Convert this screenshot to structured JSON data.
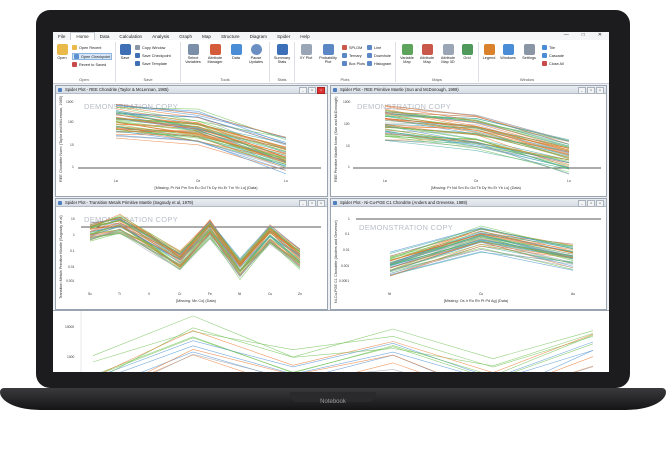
{
  "device": {
    "label": "Notebook"
  },
  "menubar": {
    "tabs": [
      "File",
      "Home",
      "Data",
      "Calculation",
      "Analysis",
      "Graph",
      "Map",
      "Structure",
      "Diagram",
      "Spider",
      "Help"
    ],
    "active": "Home"
  },
  "ribbon": {
    "open": {
      "label": "Open",
      "recent": "Open Recent",
      "checkpoint": "Open Checkpoint",
      "revert": "Revert to Saved",
      "group": "Open"
    },
    "save": {
      "label": "Save",
      "copy_window": "Copy Window",
      "save_checkpoint": "Save Checkpoint",
      "save_template": "Save Template",
      "group": "Save"
    },
    "tools": {
      "select": "Select Variables",
      "attribute": "Attribute Manager",
      "data": "Data",
      "pause": "Pause Updates",
      "group": "Tools"
    },
    "stats": {
      "summary": "Summary Stats",
      "group": "Stats"
    },
    "plots": {
      "xy": "XY Plot",
      "probability": "Probability Plot",
      "splom": "SPLOM",
      "ternary": "Ternary",
      "boxplots": "Box Plots",
      "line": "Line",
      "downhole": "Downhole",
      "histogram": "Histogram",
      "group": "Plots"
    },
    "maps": {
      "variable": "Variable Map",
      "attribute": "Attribute Map",
      "attribute3d": "Attribute Map 3D",
      "grid": "Grid",
      "group": "Maps"
    },
    "window": {
      "legend": "Legend",
      "windows": "Windows",
      "settings": "Settings",
      "tile": "Tile",
      "cascade": "Cascade",
      "close_all": "Close All",
      "group": "Window"
    }
  },
  "watermark": "DEMONSTRATION COPY",
  "panels": [
    {
      "title": "Spider Plot - REE Chondrite (Taylor & McLennan, 1985)",
      "ylabel": "REE Chondrite Norm (Taylor and McLennan, 1985)",
      "xlabel": "[Missing: Pr Nd Pm Sm Eu Gd Tb Dy Ho Er Tm Yb Lu] (Data)",
      "xticks": [
        "La",
        "Ce",
        "Lu"
      ],
      "yticks": [
        "1000",
        "100",
        "10",
        "1"
      ]
    },
    {
      "title": "Spider Plot - REE Primitive Mantle (Sun and McDonough, 1989)",
      "ylabel": "REE Primitive Mantle Norm (Sun and McDonough)",
      "xlabel": "[Missing: Pr Nd Sm Eu Gd Tb Dy Ho Er Yb Lu] (Data)",
      "xticks": [
        "La",
        "Ce",
        "Lu"
      ],
      "yticks": [
        "1000",
        "100",
        "10",
        "1"
      ]
    },
    {
      "title": "Spider Plot - Transition Metals Primitive Mantle (Sagoudy et al, 1979)",
      "ylabel": "Transition Metals Primitive Mantle (Sagoudy et al)",
      "xlabel": "[Missing: Mn Co] (Data)",
      "xticks": [
        "Sc",
        "Ti",
        "V",
        "Cr",
        "Fe",
        "Ni",
        "Cu",
        "Zn"
      ],
      "yticks": [
        "10",
        "1",
        "0.1",
        "0.01",
        "0.001"
      ]
    },
    {
      "title": "Spider Plot - Ni-Cu-PGE C1 Chondrite (Anders and Grevesse, 1989)",
      "ylabel": "Ni-Cu-PGE C1 Chondrite (Anders and Grevesse)",
      "xlabel": "[Missing: Os Ir Ru Rh Pt Pd Ag] (Data)",
      "xticks": [
        "Ni",
        "Cu",
        "Au"
      ],
      "yticks": [
        "1",
        "0.1",
        "0.01",
        "0.001",
        "0.0001"
      ]
    }
  ],
  "bottom": {
    "yticks": [
      "10000",
      "1000"
    ]
  },
  "colors": {
    "orange": "#e8762d",
    "green": "#6bbf4e",
    "teal": "#3fa8a0",
    "blue": "#4b8fd1",
    "gray": "#9aa0a8",
    "yellow": "#e6c13c"
  }
}
